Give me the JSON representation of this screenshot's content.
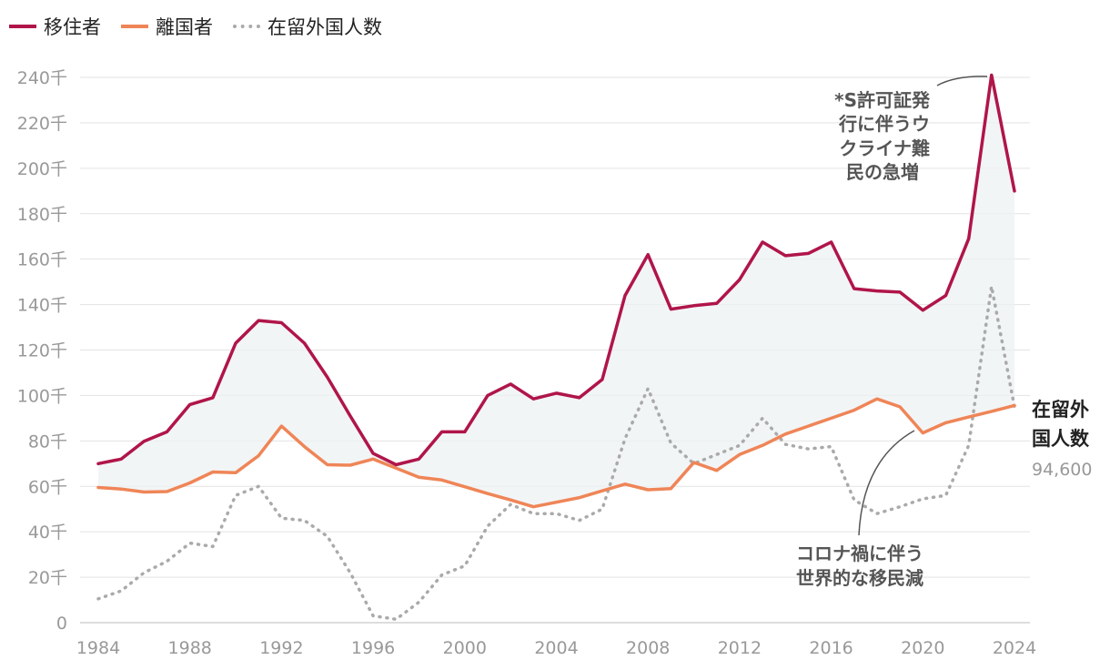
{
  "legend": {
    "items": [
      {
        "label": "移住者",
        "color": "#b0154a",
        "style": "solid"
      },
      {
        "label": "離国者",
        "color": "#ef8557",
        "style": "solid"
      },
      {
        "label": "在留外国人数",
        "color": "#aaaaaa",
        "style": "dotted"
      }
    ]
  },
  "annotations": {
    "peak": [
      "*S許可証発",
      "行に伴うウ",
      "クライナ難",
      "民の急増"
    ],
    "covid": [
      "コロナ禍に伴う",
      "世界的な移民減"
    ],
    "end_label": [
      "在留外",
      "国人数"
    ],
    "end_value": "94,600"
  },
  "chart_data": {
    "type": "line",
    "ylim": [
      0,
      240000
    ],
    "y_ticks": [
      {
        "value": 0,
        "label": "0"
      },
      {
        "value": 20000,
        "label": "20千"
      },
      {
        "value": 40000,
        "label": "40千"
      },
      {
        "value": 60000,
        "label": "60千"
      },
      {
        "value": 80000,
        "label": "80千"
      },
      {
        "value": 100000,
        "label": "100千"
      },
      {
        "value": 120000,
        "label": "120千"
      },
      {
        "value": 140000,
        "label": "140千"
      },
      {
        "value": 160000,
        "label": "160千"
      },
      {
        "value": 180000,
        "label": "180千"
      },
      {
        "value": 200000,
        "label": "200千"
      },
      {
        "value": 220000,
        "label": "220千"
      },
      {
        "value": 240000,
        "label": "240千"
      }
    ],
    "x_ticks": [
      "1984",
      "1988",
      "1992",
      "1996",
      "2000",
      "2004",
      "2008",
      "2012",
      "2016",
      "2020",
      "2024"
    ],
    "x": [
      1984,
      1985,
      1986,
      1987,
      1988,
      1989,
      1990,
      1991,
      1992,
      1993,
      1994,
      1995,
      1996,
      1997,
      1998,
      1999,
      2000,
      2001,
      2002,
      2003,
      2004,
      2005,
      2006,
      2007,
      2008,
      2009,
      2010,
      2011,
      2012,
      2013,
      2014,
      2015,
      2016,
      2017,
      2018,
      2019,
      2020,
      2021,
      2022,
      2023,
      2024
    ],
    "series": [
      {
        "name": "移住者",
        "color": "#b0154a",
        "values": [
          70000,
          72000,
          79800,
          84000,
          96000,
          99000,
          123000,
          133000,
          132000,
          123000,
          108000,
          91000,
          74500,
          69500,
          72000,
          84000,
          84000,
          100000,
          105000,
          98500,
          101000,
          99000,
          107000,
          144000,
          162000,
          138000,
          139500,
          140500,
          151000,
          167500,
          161500,
          162500,
          167500,
          147000,
          146000,
          145500,
          137500,
          144000,
          169000,
          241000,
          190000
        ]
      },
      {
        "name": "離国者",
        "color": "#ef8557",
        "values": [
          59500,
          58800,
          57500,
          57700,
          61500,
          66300,
          66000,
          73500,
          86500,
          77500,
          69500,
          69300,
          72000,
          68000,
          64000,
          62800,
          59800,
          56800,
          54000,
          51000,
          53000,
          55000,
          58000,
          61000,
          58500,
          59000,
          70500,
          67000,
          74000,
          78000,
          83000,
          86500,
          90000,
          93500,
          98500,
          95000,
          83500,
          88000,
          90500,
          93000,
          95600
        ]
      },
      {
        "name": "在留外国人数",
        "color": "#aaaaaa",
        "values": [
          10500,
          14000,
          22000,
          27000,
          35000,
          33500,
          56000,
          60000,
          46000,
          45000,
          38000,
          22000,
          3000,
          1500,
          9000,
          21000,
          25000,
          42500,
          52000,
          48000,
          48000,
          45000,
          50000,
          81000,
          103000,
          79000,
          70000,
          74000,
          78000,
          90000,
          78500,
          76500,
          77500,
          54000,
          48000,
          51000,
          54500,
          56000,
          78000,
          148000,
          95000
        ]
      }
    ]
  }
}
